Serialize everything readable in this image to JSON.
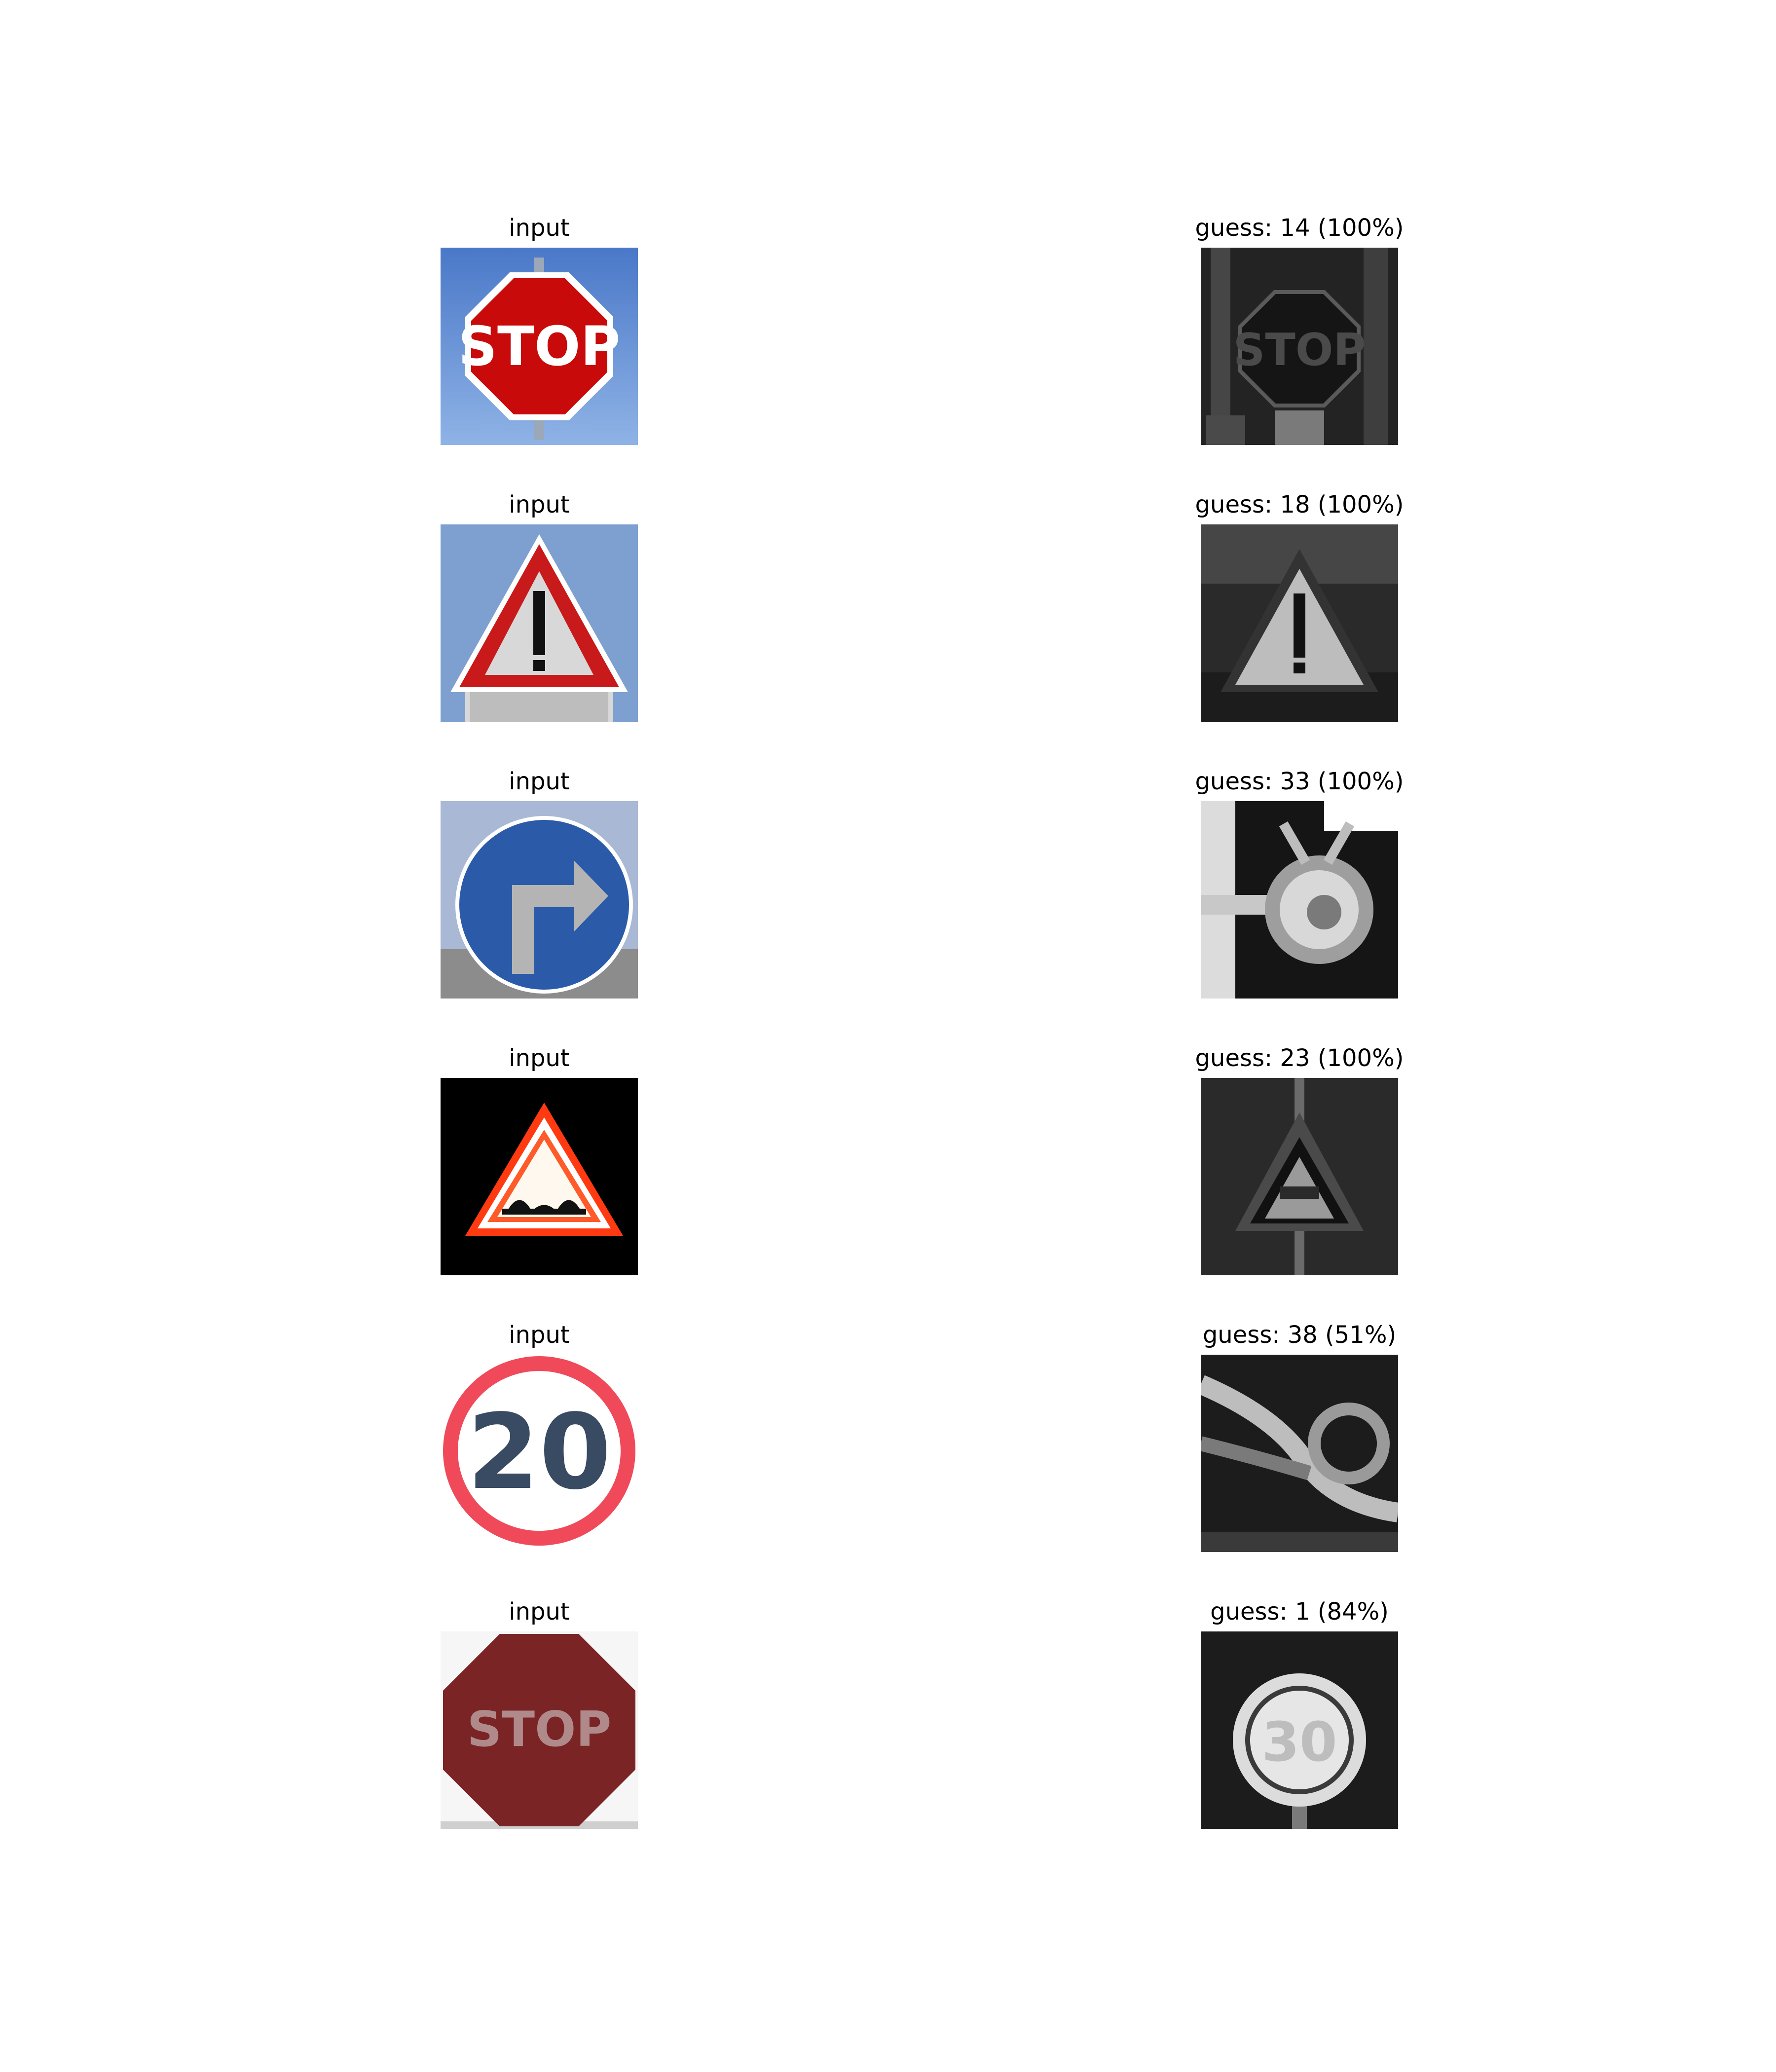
{
  "rows": [
    {
      "input_title": "input",
      "guess_title": "guess: 14 (100%)",
      "input_sign": "stop",
      "guess_sign": "stop"
    },
    {
      "input_title": "input",
      "guess_title": "guess: 18 (100%)",
      "input_sign": "warning-exclamation",
      "guess_sign": "warning-exclamation"
    },
    {
      "input_title": "input",
      "guess_title": "guess: 33 (100%)",
      "input_sign": "turn-right-ahead",
      "guess_sign": "turn-right-ahead"
    },
    {
      "input_title": "input",
      "guess_title": "guess: 23 (100%)",
      "input_sign": "bumpy-road",
      "guess_sign": "slippery-road"
    },
    {
      "input_title": "input",
      "guess_title": "guess: 38 (51%)",
      "input_sign": "speed-limit-20",
      "guess_sign": "keep-right"
    },
    {
      "input_title": "input",
      "guess_title": "guess: 1 (84%)",
      "input_sign": "stop",
      "guess_sign": "speed-limit-30"
    }
  ],
  "sign_text": {
    "stop": "STOP",
    "speed20": "20",
    "speed30": "30"
  }
}
